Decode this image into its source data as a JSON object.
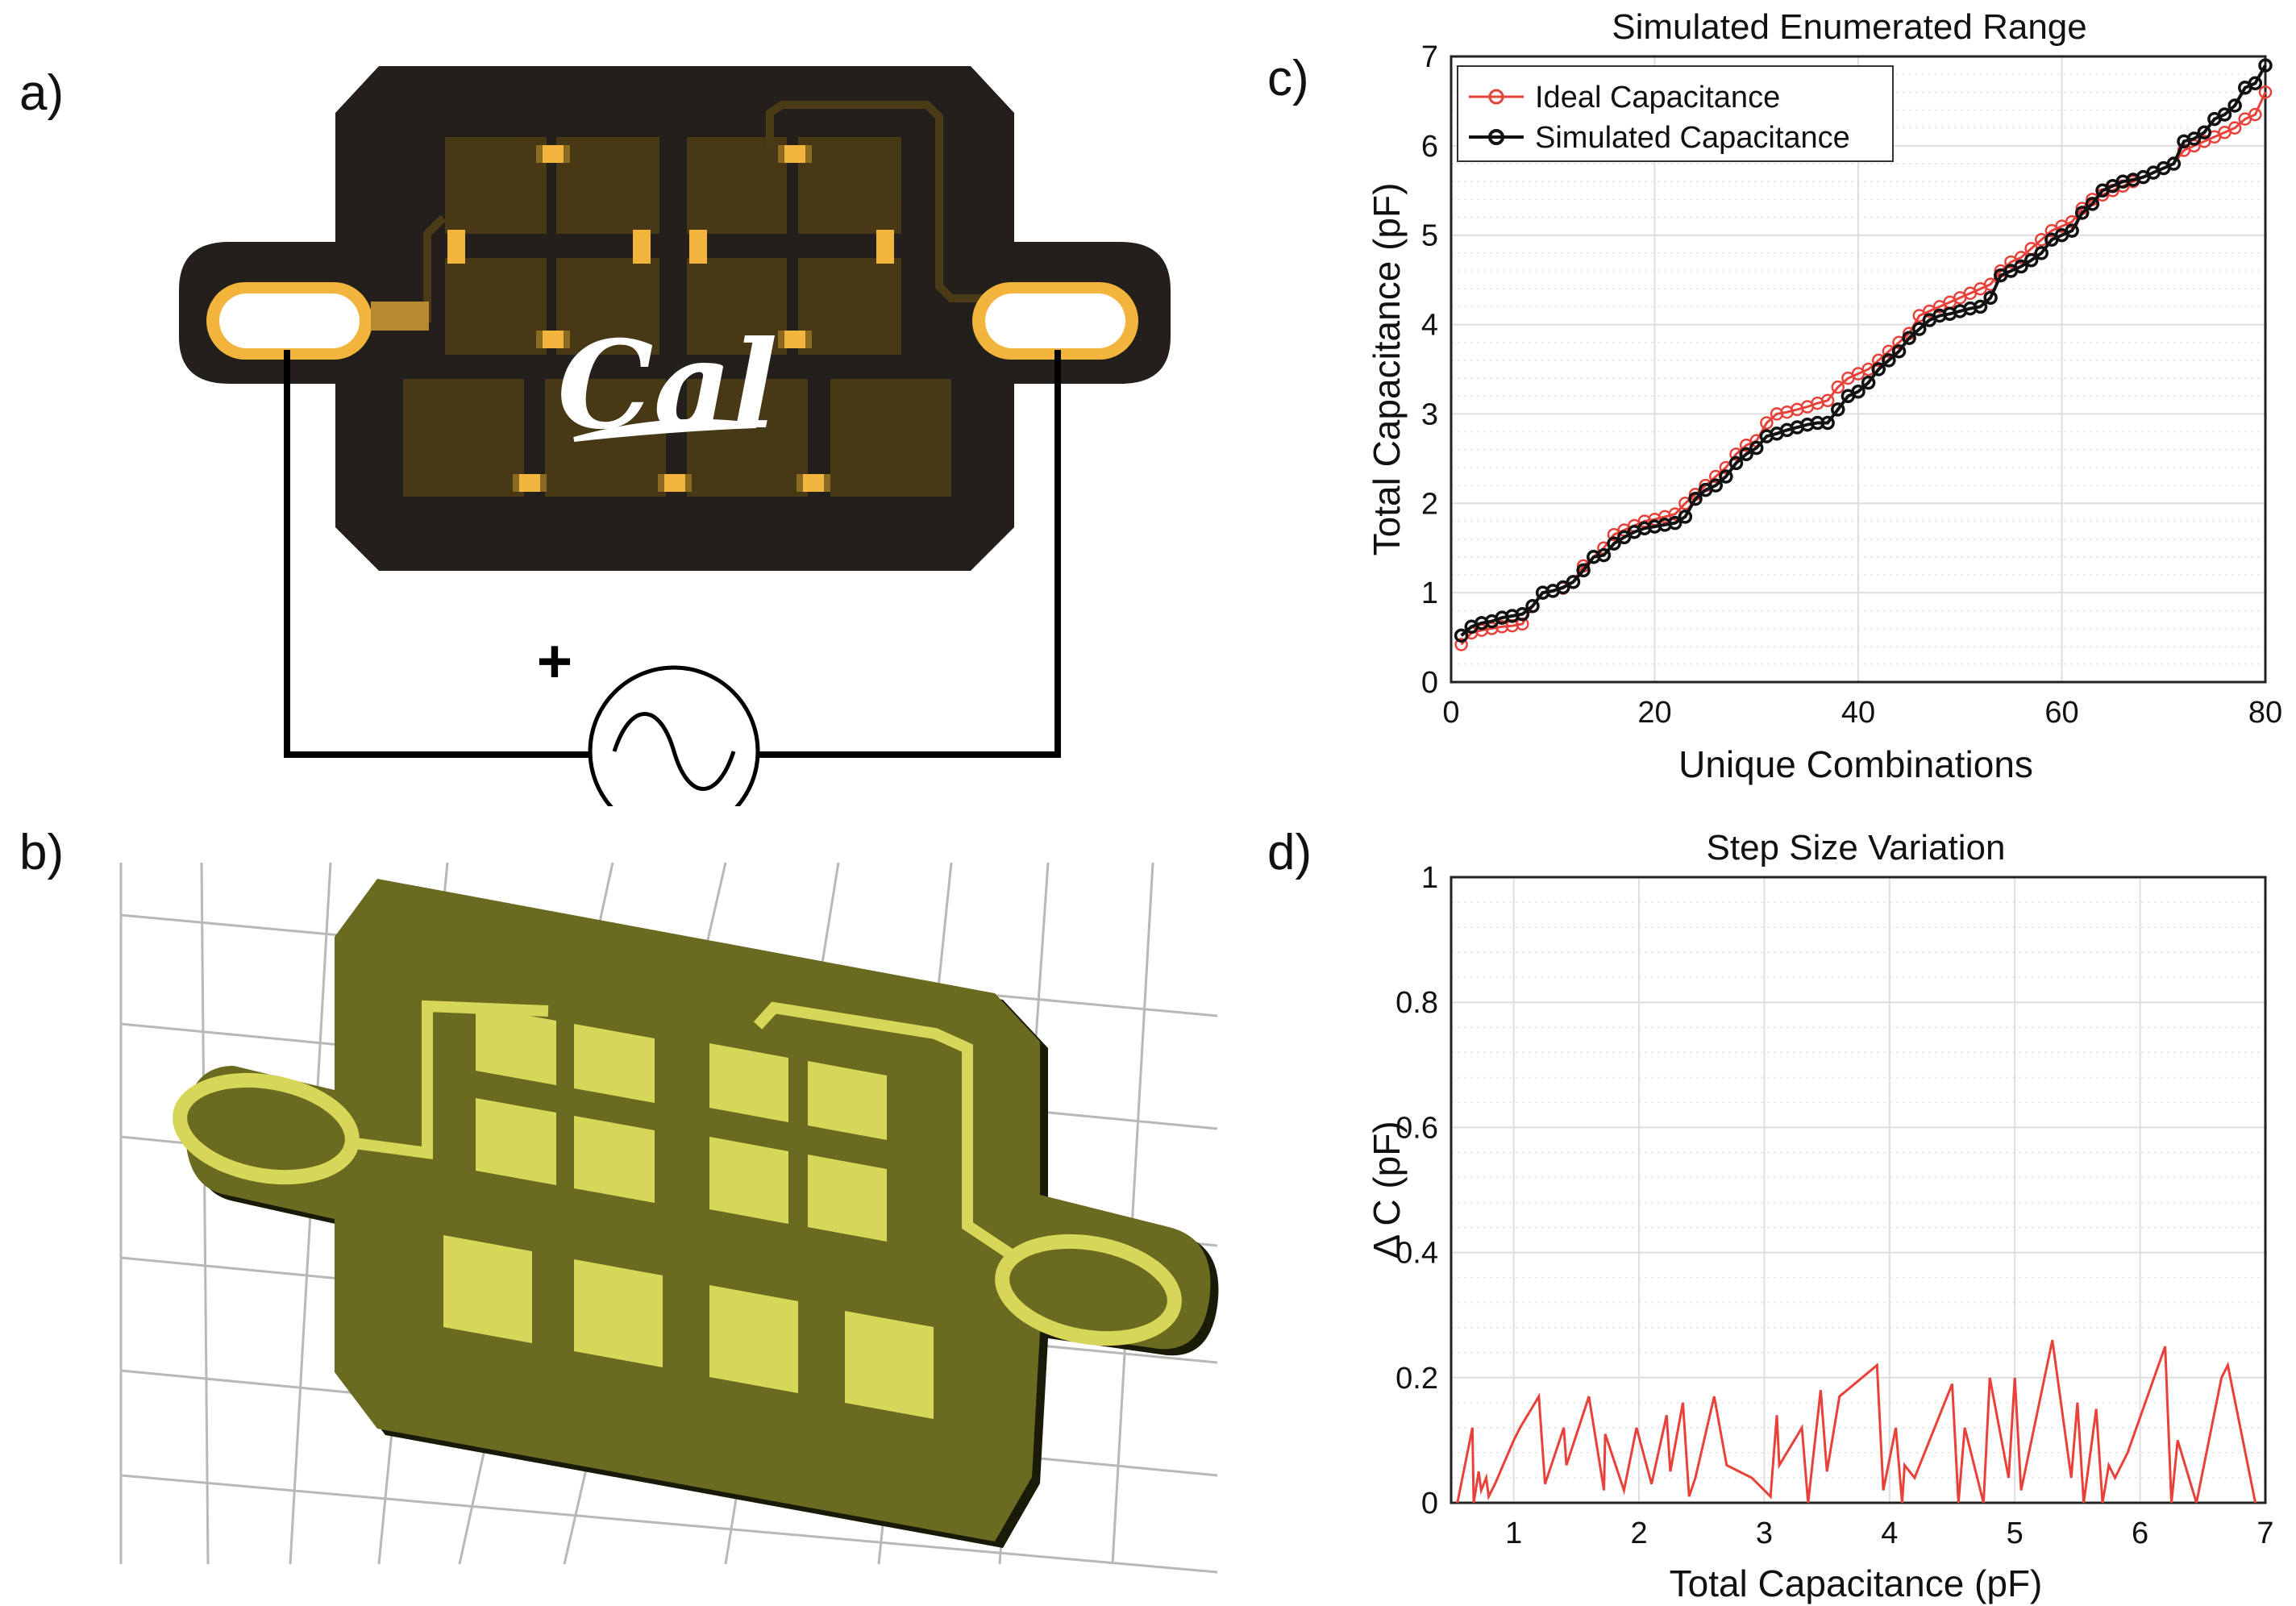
{
  "panels": {
    "a": "a)",
    "b": "b)",
    "c": "c)",
    "d": "d)"
  },
  "circuit": {
    "logo_text": "Cal",
    "plus_sign": "+",
    "board_color": "#231f1a",
    "pad_color": "#f2b43c"
  },
  "render3d": {
    "substrate_color": "#6a6b20",
    "metal_color": "#d6d659"
  },
  "colors": {
    "ideal": "#e8413a",
    "simulated": "#111111",
    "step": "#e8413a",
    "grid": "#dcdcdc"
  },
  "chart_data": [
    {
      "type": "line",
      "title": "Simulated Enumerated Range",
      "xlabel": "Unique Combinations",
      "ylabel": "Total Capacitance (pF)",
      "xlim": [
        0,
        80
      ],
      "ylim": [
        0,
        7
      ],
      "xticks": [
        "0",
        "20",
        "40",
        "60",
        "80"
      ],
      "yticks": [
        "0",
        "1",
        "2",
        "3",
        "4",
        "5",
        "6",
        "7"
      ],
      "grid": true,
      "legend_position": "top-left",
      "series": [
        {
          "name": "Ideal Capacitance",
          "marker": "circle",
          "color": "#e8413a",
          "x": [
            1,
            2,
            3,
            4,
            5,
            6,
            7,
            8,
            9,
            10,
            11,
            12,
            13,
            14,
            15,
            16,
            17,
            18,
            19,
            20,
            21,
            22,
            23,
            24,
            25,
            26,
            27,
            28,
            29,
            30,
            31,
            32,
            33,
            34,
            35,
            36,
            37,
            38,
            39,
            40,
            41,
            42,
            43,
            44,
            45,
            46,
            47,
            48,
            49,
            50,
            51,
            52,
            53,
            54,
            55,
            56,
            57,
            58,
            59,
            60,
            61,
            62,
            63,
            64,
            65,
            66,
            67,
            68,
            69,
            70,
            71,
            72,
            73,
            74,
            75,
            76,
            77,
            78,
            79,
            80
          ],
          "y": [
            0.42,
            0.55,
            0.58,
            0.6,
            0.62,
            0.63,
            0.65,
            0.85,
            1.0,
            1.02,
            1.05,
            1.12,
            1.3,
            1.4,
            1.5,
            1.65,
            1.7,
            1.75,
            1.8,
            1.82,
            1.85,
            1.88,
            2.0,
            2.1,
            2.2,
            2.3,
            2.4,
            2.55,
            2.65,
            2.7,
            2.9,
            3.0,
            3.02,
            3.05,
            3.08,
            3.12,
            3.15,
            3.3,
            3.4,
            3.45,
            3.5,
            3.6,
            3.7,
            3.8,
            3.9,
            4.1,
            4.15,
            4.2,
            4.25,
            4.3,
            4.35,
            4.4,
            4.45,
            4.6,
            4.7,
            4.75,
            4.85,
            4.95,
            5.05,
            5.1,
            5.15,
            5.3,
            5.4,
            5.45,
            5.5,
            5.55,
            5.6,
            5.65,
            5.7,
            5.75,
            5.8,
            5.95,
            6.0,
            6.05,
            6.1,
            6.15,
            6.2,
            6.3,
            6.35,
            6.6
          ]
        },
        {
          "name": "Simulated Capacitance",
          "marker": "circle",
          "color": "#111111",
          "x": [
            1,
            2,
            3,
            4,
            5,
            6,
            7,
            8,
            9,
            10,
            11,
            12,
            13,
            14,
            15,
            16,
            17,
            18,
            19,
            20,
            21,
            22,
            23,
            24,
            25,
            26,
            27,
            28,
            29,
            30,
            31,
            32,
            33,
            34,
            35,
            36,
            37,
            38,
            39,
            40,
            41,
            42,
            43,
            44,
            45,
            46,
            47,
            48,
            49,
            50,
            51,
            52,
            53,
            54,
            55,
            56,
            57,
            58,
            59,
            60,
            61,
            62,
            63,
            64,
            65,
            66,
            67,
            68,
            69,
            70,
            71,
            72,
            73,
            74,
            75,
            76,
            77,
            78,
            79,
            80
          ],
          "y": [
            0.52,
            0.62,
            0.66,
            0.68,
            0.72,
            0.74,
            0.76,
            0.85,
            1.0,
            1.02,
            1.06,
            1.12,
            1.25,
            1.4,
            1.42,
            1.55,
            1.62,
            1.68,
            1.72,
            1.74,
            1.76,
            1.78,
            1.85,
            2.05,
            2.15,
            2.2,
            2.3,
            2.45,
            2.55,
            2.62,
            2.75,
            2.78,
            2.82,
            2.85,
            2.88,
            2.9,
            2.9,
            3.05,
            3.2,
            3.25,
            3.35,
            3.5,
            3.6,
            3.7,
            3.85,
            3.95,
            4.05,
            4.1,
            4.12,
            4.15,
            4.18,
            4.2,
            4.3,
            4.55,
            4.6,
            4.65,
            4.72,
            4.8,
            4.95,
            5.0,
            5.05,
            5.25,
            5.35,
            5.5,
            5.55,
            5.6,
            5.62,
            5.65,
            5.7,
            5.75,
            5.8,
            6.05,
            6.08,
            6.15,
            6.3,
            6.35,
            6.45,
            6.65,
            6.7,
            6.9
          ]
        }
      ]
    },
    {
      "type": "line",
      "title": "Step Size Variation",
      "xlabel": "Total Capacitance (pF)",
      "ylabel": "Δ C (pF)",
      "xlim": [
        0.5,
        7
      ],
      "ylim": [
        0,
        1
      ],
      "xticks": [
        "1",
        "2",
        "3",
        "4",
        "5",
        "6",
        "7"
      ],
      "yticks": [
        "0",
        "0.2",
        "0.4",
        "0.6",
        "0.8",
        "1"
      ],
      "grid": true,
      "series": [
        {
          "color": "#e8413a",
          "x": [
            0.55,
            0.67,
            0.68,
            0.72,
            0.74,
            0.78,
            0.8,
            0.85,
            1.0,
            1.05,
            1.2,
            1.25,
            1.4,
            1.42,
            1.6,
            1.72,
            1.73,
            1.88,
            1.98,
            2.1,
            2.22,
            2.25,
            2.35,
            2.4,
            2.45,
            2.6,
            2.7,
            2.9,
            2.95,
            3.05,
            3.1,
            3.12,
            3.3,
            3.35,
            3.45,
            3.5,
            3.6,
            3.9,
            3.95,
            4.05,
            4.1,
            4.12,
            4.2,
            4.5,
            4.55,
            4.6,
            4.75,
            4.8,
            4.95,
            5.0,
            5.05,
            5.3,
            5.45,
            5.5,
            5.55,
            5.65,
            5.7,
            5.75,
            5.8,
            5.9,
            6.2,
            6.25,
            6.3,
            6.45,
            6.65,
            6.7,
            6.92
          ],
          "y": [
            0.0,
            0.12,
            0.0,
            0.05,
            0.02,
            0.04,
            0.01,
            0.03,
            0.1,
            0.12,
            0.17,
            0.03,
            0.12,
            0.06,
            0.17,
            0.02,
            0.11,
            0.02,
            0.12,
            0.03,
            0.14,
            0.05,
            0.16,
            0.01,
            0.04,
            0.17,
            0.06,
            0.04,
            0.03,
            0.01,
            0.14,
            0.06,
            0.12,
            0.0,
            0.18,
            0.05,
            0.17,
            0.22,
            0.02,
            0.12,
            0.0,
            0.06,
            0.04,
            0.19,
            0.0,
            0.12,
            0.0,
            0.2,
            0.04,
            0.2,
            0.02,
            0.26,
            0.04,
            0.16,
            0.0,
            0.15,
            0.0,
            0.06,
            0.04,
            0.08,
            0.25,
            0.0,
            0.1,
            0.0,
            0.2,
            0.22,
            0.0
          ]
        }
      ]
    }
  ]
}
